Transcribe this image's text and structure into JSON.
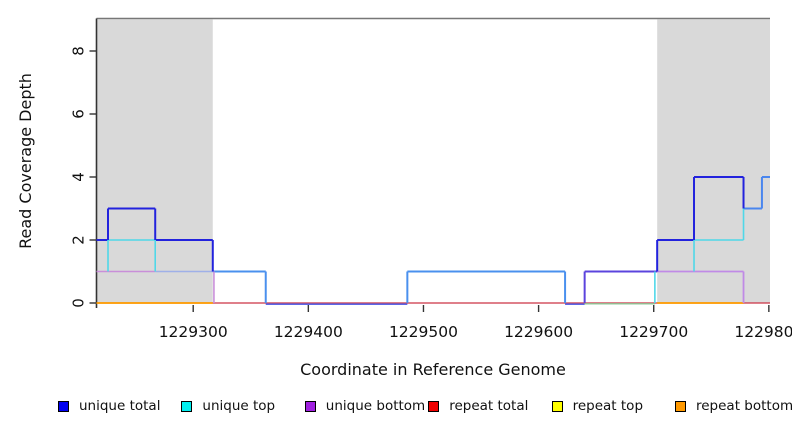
{
  "chart_data": {
    "type": "line",
    "subtype": "step-coverage-plot",
    "title": "",
    "xlabel": "Coordinate in Reference Genome",
    "ylabel": "Read Coverage Depth",
    "xlim": [
      1229216,
      1229801
    ],
    "ylim": [
      0,
      9
    ],
    "x_ticks": [
      1229300,
      1229400,
      1229500,
      1229600,
      1229700,
      1229800
    ],
    "y_ticks": [
      0,
      2,
      4,
      6,
      8
    ],
    "grid": false,
    "legend_position": "bottom",
    "shaded_regions": [
      {
        "x1": 1229216,
        "x2": 1229317,
        "color": "#d9d9d9",
        "meaning": "repeat region"
      },
      {
        "x1": 1229703,
        "x2": 1229801,
        "color": "#d9d9d9",
        "meaning": "repeat region"
      }
    ],
    "series": [
      {
        "name": "unique total",
        "color": "#0000ee",
        "step_points": [
          [
            1229216,
            2
          ],
          [
            1229226,
            3
          ],
          [
            1229267,
            2
          ],
          [
            1229317,
            1
          ],
          [
            1229363,
            0
          ],
          [
            1229486,
            1
          ],
          [
            1229623,
            0
          ],
          [
            1229640,
            1
          ],
          [
            1229703,
            2
          ],
          [
            1229735,
            4
          ],
          [
            1229778,
            3
          ],
          [
            1229794,
            4
          ],
          [
            1229801,
            4
          ]
        ]
      },
      {
        "name": "unique top",
        "color": "#00eeee",
        "step_points": [
          [
            1229216,
            1
          ],
          [
            1229226,
            2
          ],
          [
            1229267,
            1
          ],
          [
            1229363,
            0
          ],
          [
            1229486,
            1
          ],
          [
            1229623,
            0
          ],
          [
            1229701,
            1
          ],
          [
            1229735,
            2
          ],
          [
            1229778,
            3
          ],
          [
            1229794,
            4
          ],
          [
            1229801,
            4
          ]
        ]
      },
      {
        "name": "unique bottom",
        "color": "#a020e0",
        "step_points": [
          [
            1229216,
            1
          ],
          [
            1229318,
            0
          ],
          [
            1229640,
            1
          ],
          [
            1229778,
            0
          ],
          [
            1229801,
            0
          ]
        ]
      },
      {
        "name": "repeat total",
        "color": "#ee0000",
        "step_points": [
          [
            1229216,
            0
          ],
          [
            1229801,
            0
          ]
        ]
      },
      {
        "name": "repeat top",
        "color": "#ffff00",
        "value": 0,
        "spans": [
          [
            1229216,
            1229317
          ],
          [
            1229703,
            1229778
          ]
        ]
      },
      {
        "name": "repeat bottom",
        "color": "#ff9900",
        "value": 0,
        "spans": [
          [
            1229216,
            1229317
          ],
          [
            1229703,
            1229778
          ]
        ]
      }
    ],
    "legend": [
      {
        "label": "unique total",
        "color": "#0000ee"
      },
      {
        "label": "unique top",
        "color": "#00eeee"
      },
      {
        "label": "unique bottom",
        "color": "#a020e0"
      },
      {
        "label": "repeat total",
        "color": "#ee0000"
      },
      {
        "label": "repeat top",
        "color": "#ffff00"
      },
      {
        "label": "repeat bottom",
        "color": "#ff9900"
      }
    ],
    "colors": {
      "blue": "#2222dd",
      "cyan": "#4fd8e8",
      "red": "#cc3344",
      "orange": "#ff9f00",
      "orchid": "#c98fd9",
      "periwinkle": "#9fb0e8",
      "dodger": "#4a90ee",
      "dodger2": "#4a86ee",
      "slate": "#5b44dd",
      "lightpurple": "#c08ae6",
      "blueviolet0": "#5b67e8",
      "green0": "#8fcb9b",
      "shade": "#d9d9d9",
      "axis": "#333333",
      "boxtop": "#777777"
    },
    "visual_segments": {
      "horizontal": [
        {
          "x1": 1229216,
          "x2": 1229801,
          "v": 0,
          "c": "red",
          "w": 1.2
        },
        {
          "x1": 1229363,
          "x2": 1229486,
          "v": 0,
          "c": "blueviolet0",
          "w": 1.6,
          "dy": 1.2
        },
        {
          "x1": 1229623,
          "x2": 1229640,
          "v": 0,
          "c": "blueviolet0",
          "w": 1.6,
          "dy": 1.2
        },
        {
          "x1": 1229640,
          "x2": 1229701,
          "v": 0,
          "c": "green0",
          "w": 1.4,
          "dy": 0.8
        },
        {
          "x1": 1229216,
          "x2": 1229317,
          "v": 0,
          "c": "orange",
          "w": 1.8
        },
        {
          "x1": 1229703,
          "x2": 1229778,
          "v": 0,
          "c": "orange",
          "w": 1.8
        },
        {
          "x1": 1229216,
          "x2": 1229267,
          "v": 1,
          "c": "orchid",
          "w": 1.6
        },
        {
          "x1": 1229267,
          "x2": 1229317,
          "v": 1,
          "c": "periwinkle",
          "w": 1.6
        },
        {
          "x1": 1229317,
          "x2": 1229363,
          "v": 1,
          "c": "dodger",
          "w": 2
        },
        {
          "x1": 1229486,
          "x2": 1229623,
          "v": 1,
          "c": "dodger",
          "w": 2
        },
        {
          "x1": 1229640,
          "x2": 1229703,
          "v": 1,
          "c": "slate",
          "w": 2
        },
        {
          "x1": 1229703,
          "x2": 1229778,
          "v": 1,
          "c": "lightpurple",
          "w": 1.8
        },
        {
          "x1": 1229226,
          "x2": 1229267,
          "v": 2,
          "c": "cyan",
          "w": 1.6
        },
        {
          "x1": 1229735,
          "x2": 1229778,
          "v": 2,
          "c": "cyan",
          "w": 1.6
        },
        {
          "x1": 1229216,
          "x2": 1229226,
          "v": 2,
          "c": "blue",
          "w": 2
        },
        {
          "x1": 1229267,
          "x2": 1229317,
          "v": 2,
          "c": "blue",
          "w": 2
        },
        {
          "x1": 1229703,
          "x2": 1229735,
          "v": 2,
          "c": "blue",
          "w": 2
        },
        {
          "x1": 1229226,
          "x2": 1229267,
          "v": 3,
          "c": "blue",
          "w": 2
        },
        {
          "x1": 1229778,
          "x2": 1229794,
          "v": 3,
          "c": "dodger2",
          "w": 2
        },
        {
          "x1": 1229735,
          "x2": 1229778,
          "v": 4,
          "c": "blue",
          "w": 2
        },
        {
          "x1": 1229794,
          "x2": 1229801,
          "v": 4,
          "c": "dodger2",
          "w": 2
        }
      ],
      "vertical": [
        {
          "x": 1229226,
          "v1": 2,
          "v2": 3,
          "c": "blue",
          "w": 2
        },
        {
          "x": 1229226,
          "v1": 1,
          "v2": 2,
          "c": "cyan",
          "w": 1.6
        },
        {
          "x": 1229267,
          "v1": 2,
          "v2": 3,
          "c": "blue",
          "w": 2
        },
        {
          "x": 1229267,
          "v1": 1,
          "v2": 2,
          "c": "cyan",
          "w": 1.6
        },
        {
          "x": 1229317,
          "v1": 1,
          "v2": 2,
          "c": "blue",
          "w": 2
        },
        {
          "x": 1229318,
          "v1": 0,
          "v2": 1,
          "c": "orchid",
          "w": 1.6
        },
        {
          "x": 1229363,
          "v1": 0,
          "v2": 1,
          "c": "dodger",
          "w": 2
        },
        {
          "x": 1229486,
          "v1": 0,
          "v2": 1,
          "c": "dodger",
          "w": 2
        },
        {
          "x": 1229623,
          "v1": 0,
          "v2": 1,
          "c": "dodger",
          "w": 2
        },
        {
          "x": 1229640,
          "v1": 0,
          "v2": 1,
          "c": "slate",
          "w": 2
        },
        {
          "x": 1229701,
          "v1": 0,
          "v2": 1,
          "c": "cyan",
          "w": 1.6
        },
        {
          "x": 1229703,
          "v1": 1,
          "v2": 2,
          "c": "blue",
          "w": 2
        },
        {
          "x": 1229735,
          "v1": 2,
          "v2": 4,
          "c": "blue",
          "w": 2
        },
        {
          "x": 1229735,
          "v1": 1,
          "v2": 2,
          "c": "cyan",
          "w": 1.6
        },
        {
          "x": 1229778,
          "v1": 3,
          "v2": 4,
          "c": "blue",
          "w": 2
        },
        {
          "x": 1229778,
          "v1": 2,
          "v2": 3,
          "c": "cyan",
          "w": 1.6
        },
        {
          "x": 1229778,
          "v1": 0,
          "v2": 1,
          "c": "lightpurple",
          "w": 1.8
        },
        {
          "x": 1229794,
          "v1": 3,
          "v2": 4,
          "c": "dodger2",
          "w": 2
        }
      ]
    }
  }
}
